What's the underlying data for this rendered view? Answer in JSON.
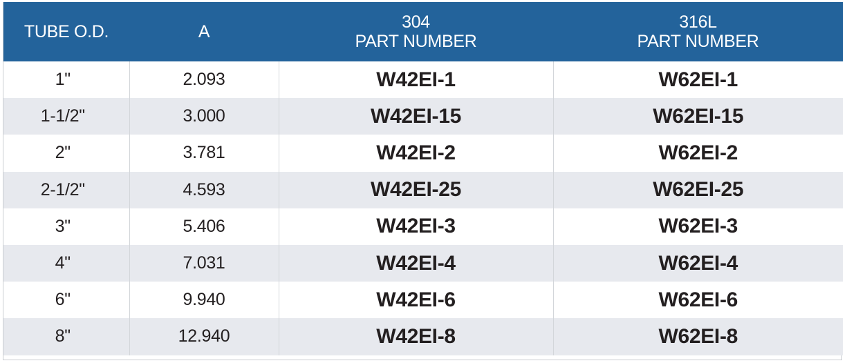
{
  "table": {
    "headers": {
      "tube_od": "TUBE O.D.",
      "a": "A",
      "col304_line1": "304",
      "col304_line2": "PART NUMBER",
      "col316_line1": "316L",
      "col316_line2": "PART NUMBER"
    },
    "rows": [
      {
        "tube_od": "1\"",
        "a": "2.093",
        "p304": "W42EI-1",
        "p316": "W62EI-1"
      },
      {
        "tube_od": "1-1/2\"",
        "a": "3.000",
        "p304": "W42EI-15",
        "p316": "W62EI-15"
      },
      {
        "tube_od": "2\"",
        "a": "3.781",
        "p304": "W42EI-2",
        "p316": "W62EI-2"
      },
      {
        "tube_od": "2-1/2\"",
        "a": "4.593",
        "p304": "W42EI-25",
        "p316": "W62EI-25"
      },
      {
        "tube_od": "3\"",
        "a": "5.406",
        "p304": "W42EI-3",
        "p316": "W62EI-3"
      },
      {
        "tube_od": "4\"",
        "a": "7.031",
        "p304": "W42EI-4",
        "p316": "W62EI-4"
      },
      {
        "tube_od": "6\"",
        "a": "9.940",
        "p304": "W42EI-6",
        "p316": "W62EI-6"
      },
      {
        "tube_od": "8\"",
        "a": "12.940",
        "p304": "W42EI-8",
        "p316": "W62EI-8"
      }
    ]
  },
  "colors": {
    "header_bg": "#23639b",
    "header_text": "#ffffff",
    "row_alt_bg": "#e7e9ee",
    "body_text": "#231f20"
  }
}
